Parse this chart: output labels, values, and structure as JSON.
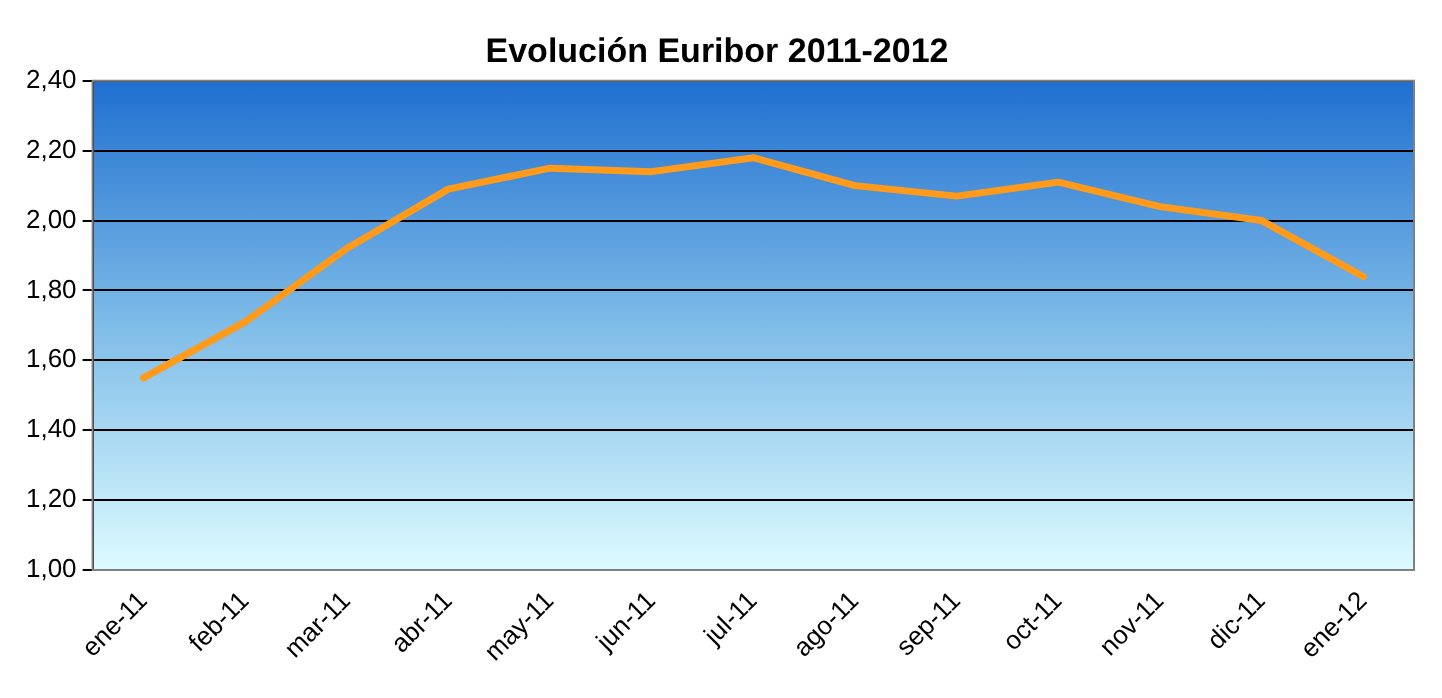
{
  "chart_data": {
    "type": "line",
    "title": "Evolución Euribor 2011-2012",
    "categories": [
      "ene-11",
      "feb-11",
      "mar-11",
      "abr-11",
      "may-11",
      "jun-11",
      "jul-11",
      "ago-11",
      "sep-11",
      "oct-11",
      "nov-11",
      "dic-11",
      "ene-12"
    ],
    "series": [
      {
        "color": "#ff9a1a",
        "values": [
          1.55,
          1.71,
          1.92,
          2.09,
          2.15,
          2.14,
          2.18,
          2.1,
          2.07,
          2.11,
          2.04,
          2.0,
          1.84
        ]
      }
    ],
    "ylim": [
      1.0,
      2.4
    ],
    "yticks": [
      {
        "value": 1.0,
        "label": "1,00"
      },
      {
        "value": 1.2,
        "label": "1,20"
      },
      {
        "value": 1.4,
        "label": "1,40"
      },
      {
        "value": 1.6,
        "label": "1,60"
      },
      {
        "value": 1.8,
        "label": "1,80"
      },
      {
        "value": 2.0,
        "label": "2,00"
      },
      {
        "value": 2.2,
        "label": "2,20"
      },
      {
        "value": 2.4,
        "label": "2,40"
      }
    ],
    "grid": "y",
    "legend": false,
    "marker": "none",
    "line_style": "solid"
  }
}
